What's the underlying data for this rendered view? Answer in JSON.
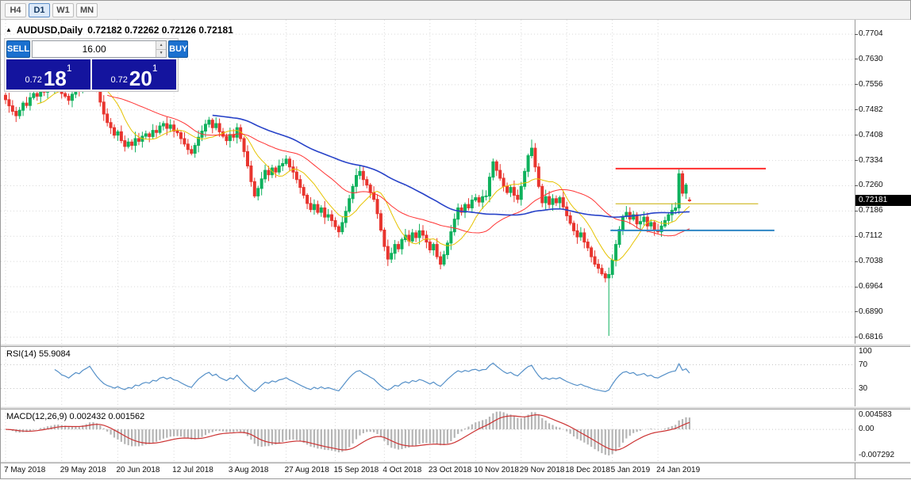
{
  "toolbar": {
    "timeframes": [
      {
        "label": "H4",
        "active": false
      },
      {
        "label": "D1",
        "active": true
      },
      {
        "label": "W1",
        "active": false
      },
      {
        "label": "MN",
        "active": false
      }
    ]
  },
  "header": {
    "marker": "▲",
    "symbol_period": "AUDUSD,Daily",
    "ohlc": "0.72182 0.72262 0.72126 0.72181"
  },
  "trade_widget": {
    "sell_label": "SELL",
    "buy_label": "BUY",
    "volume": "16.00",
    "bid": {
      "prefix": "0.72",
      "big": "18",
      "sup": "1"
    },
    "ask": {
      "prefix": "0.72",
      "big": "20",
      "sup": "1"
    }
  },
  "colors": {
    "bull": "#0fb15d",
    "bear": "#e8352e",
    "grid": "#d9d9d9",
    "level": "#c6c6c6",
    "rsi": "#5590c8",
    "macd_hist": "#b5b5b5",
    "macd_signal": "#cc3333",
    "badge_bg": "#000000",
    "trade_button_blue": "#1a70cf",
    "trade_panel_navy": "#14149e"
  },
  "chart_data": {
    "type": "candlestick",
    "symbol": "AUDUSD",
    "timeframe": "Daily",
    "last_price_label": "0.72181",
    "last_ohlc": {
      "open": 0.72182,
      "high": 0.72262,
      "low": 0.72126,
      "close": 0.72181
    },
    "price_range": {
      "top": 0.7746,
      "bottom": 0.6797
    },
    "price_axis_ticks": [
      "0.7704",
      "0.7630",
      "0.7556",
      "0.7482",
      "0.7408",
      "0.7334",
      "0.7260",
      "0.7186",
      "0.7112",
      "0.7038",
      "0.6964",
      "0.6890",
      "0.6816"
    ],
    "closes": [
      0.7512,
      0.7494,
      0.7478,
      0.7465,
      0.7481,
      0.7502,
      0.7495,
      0.7518,
      0.753,
      0.7522,
      0.7541,
      0.7534,
      0.7552,
      0.7545,
      0.756,
      0.7548,
      0.753,
      0.7522,
      0.751,
      0.7528,
      0.7546,
      0.754,
      0.7565,
      0.7582,
      0.7605,
      0.7575,
      0.754,
      0.7505,
      0.747,
      0.7445,
      0.743,
      0.7408,
      0.7418,
      0.7392,
      0.7375,
      0.7388,
      0.7378,
      0.7398,
      0.739,
      0.7405,
      0.7412,
      0.7404,
      0.7422,
      0.7416,
      0.7435,
      0.7442,
      0.7428,
      0.7438,
      0.742,
      0.7415,
      0.7398,
      0.7382,
      0.7366,
      0.7355,
      0.7378,
      0.7402,
      0.742,
      0.744,
      0.7452,
      0.743,
      0.7442,
      0.7418,
      0.7405,
      0.7392,
      0.741,
      0.7402,
      0.743,
      0.7398,
      0.736,
      0.7318,
      0.7272,
      0.723,
      0.7252,
      0.728,
      0.7305,
      0.7292,
      0.7312,
      0.73,
      0.7318,
      0.7325,
      0.7338,
      0.7315,
      0.73,
      0.7278,
      0.7255,
      0.7232,
      0.7208,
      0.719,
      0.7205,
      0.7182,
      0.7195,
      0.7168,
      0.7175,
      0.7158,
      0.714,
      0.7125,
      0.7152,
      0.7185,
      0.7222,
      0.7258,
      0.729,
      0.7302,
      0.7278,
      0.7262,
      0.724,
      0.722,
      0.7178,
      0.713,
      0.7082,
      0.7045,
      0.7062,
      0.7088,
      0.7075,
      0.7102,
      0.7115,
      0.7098,
      0.7122,
      0.7108,
      0.7128,
      0.7115,
      0.7095,
      0.7072,
      0.7088,
      0.7052,
      0.703,
      0.7058,
      0.7092,
      0.7125,
      0.7162,
      0.7195,
      0.7182,
      0.7205,
      0.7195,
      0.7218,
      0.7225,
      0.7212,
      0.7228,
      0.723,
      0.7285,
      0.733,
      0.7305,
      0.7282,
      0.7258,
      0.724,
      0.7255,
      0.7232,
      0.722,
      0.7258,
      0.7302,
      0.7348,
      0.737,
      0.7315,
      0.7258,
      0.721,
      0.7228,
      0.7205,
      0.7222,
      0.721,
      0.7225,
      0.7198,
      0.7172,
      0.715,
      0.7128,
      0.711,
      0.7122,
      0.7095,
      0.7078,
      0.7052,
      0.703,
      0.7018,
      0.7002,
      0.699,
      0.7,
      0.7042,
      0.7088,
      0.7132,
      0.717,
      0.7182,
      0.7162,
      0.7175,
      0.7148,
      0.7155,
      0.7168,
      0.7142,
      0.7152,
      0.713,
      0.7125,
      0.7142,
      0.7158,
      0.7175,
      0.7188,
      0.7195,
      0.7295,
      0.7238,
      0.7262,
      0.72181
    ],
    "overrides": {
      "150": {
        "high": 0.7395
      },
      "172": {
        "low": 0.682
      },
      "192": {
        "high": 0.7312
      },
      "195": {
        "open": 0.72182,
        "high": 0.72262,
        "low": 0.72126,
        "close": 0.72181
      }
    },
    "moving_averages": [
      {
        "period": 10,
        "color": "#e6c300",
        "width": 1
      },
      {
        "period": 30,
        "color": "#ff3333",
        "width": 1
      },
      {
        "period": 60,
        "color": "#2742c8",
        "width": 1.6
      }
    ],
    "hlines": [
      {
        "price": 0.731,
        "color": "#ff2d2d",
        "x1": 0.72,
        "x2": 0.896,
        "width": 2
      },
      {
        "price": 0.7207,
        "color": "#c8ad00",
        "x1": 0.72,
        "x2": 0.887,
        "width": 1
      },
      {
        "price": 0.7129,
        "color": "#2e86c5",
        "x1": 0.714,
        "x2": 0.906,
        "width": 2
      }
    ],
    "rsi": {
      "label": "RSI(14) 55.9084",
      "period": 14,
      "value": 55.9084,
      "axis": [
        100,
        70,
        30
      ],
      "levels": [
        70,
        30
      ],
      "range": [
        0,
        100
      ]
    },
    "macd": {
      "label": "MACD(12,26,9) 0.002432 0.001562",
      "fast": 12,
      "slow": 26,
      "signal": 9,
      "value": 0.002432,
      "signal_value": 0.001562,
      "axis": [
        "0.004583",
        "0.00",
        "-0.007292"
      ],
      "range": [
        0.004583,
        -0.007292
      ]
    },
    "date_labels": [
      {
        "label": "7 May 2018",
        "index": 0
      },
      {
        "label": "29 May 2018",
        "index": 16
      },
      {
        "label": "20 Jun 2018",
        "index": 32
      },
      {
        "label": "12 Jul 2018",
        "index": 48
      },
      {
        "label": "3 Aug 2018",
        "index": 64
      },
      {
        "label": "27 Aug 2018",
        "index": 80
      },
      {
        "label": "15 Sep 2018",
        "index": 94
      },
      {
        "label": "4 Oct 2018",
        "index": 108
      },
      {
        "label": "23 Oct 2018",
        "index": 121
      },
      {
        "label": "10 Nov 2018",
        "index": 134
      },
      {
        "label": "29 Nov 2018",
        "index": 147
      },
      {
        "label": "18 Dec 2018",
        "index": 160
      },
      {
        "label": "5 Jan 2019",
        "index": 173
      },
      {
        "label": "24 Jan 2019",
        "index": 186
      }
    ]
  }
}
